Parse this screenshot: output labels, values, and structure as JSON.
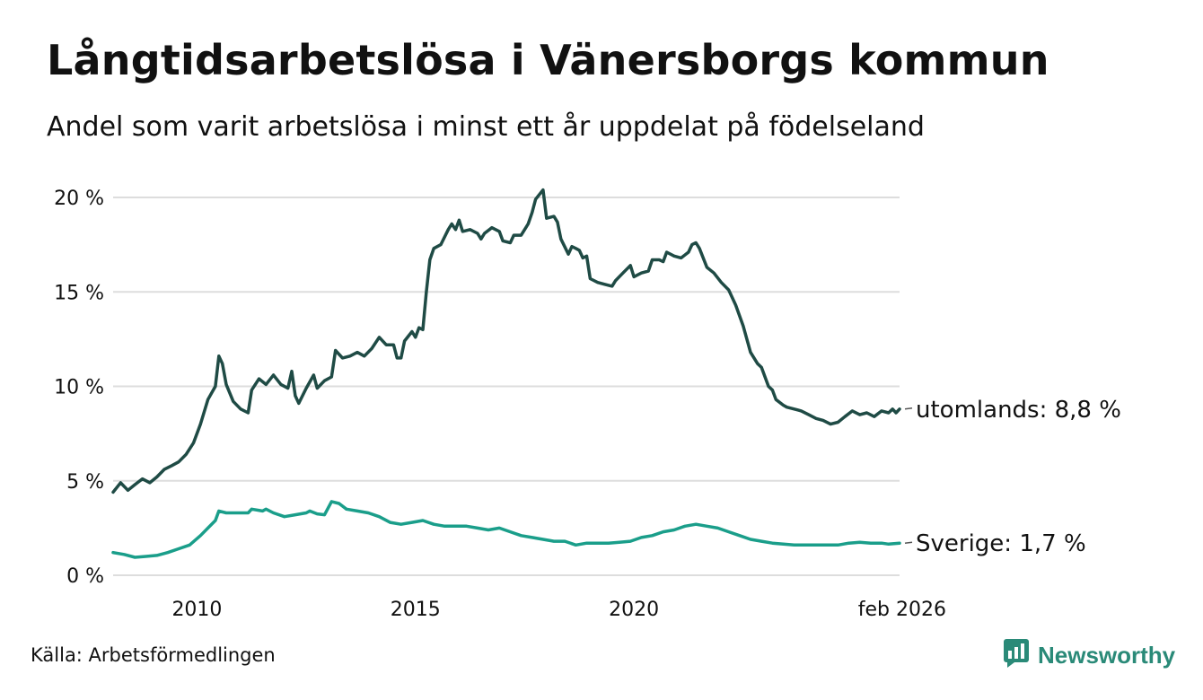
{
  "header": {
    "title": "Långtidsarbetslösa i Vänersborgs kommun",
    "subtitle": "Andel som varit arbetslösa i minst ett år uppdelat på födelseland"
  },
  "footer": {
    "source": "Källa: Arbetsförmedlingen",
    "brand": "Newsworthy",
    "brand_icon": "newsworthy-logo-icon"
  },
  "colors": {
    "utomlands": "#1f4b45",
    "sverige": "#1a9e8a",
    "grid": "#dddddd",
    "brand": "#2a8a78"
  },
  "chart_data": {
    "type": "line",
    "title": "Långtidsarbetslösa i Vänersborgs kommun",
    "xlabel": "",
    "ylabel": "",
    "xlim": [
      2008.08,
      2026.08
    ],
    "ylim": [
      0,
      20
    ],
    "y_ticks": [
      0,
      5,
      10,
      15,
      20
    ],
    "y_tick_labels": [
      "0 %",
      "5 %",
      "10 %",
      "15 %",
      "20 %"
    ],
    "x_ticks": [
      2010,
      2015,
      2020,
      2026.08
    ],
    "x_tick_labels": [
      "2010",
      "2015",
      "2020",
      "feb 2026"
    ],
    "grid": true,
    "series": [
      {
        "name": "utomlands",
        "end_label": "utomlands: 8,8 %",
        "points": [
          [
            2008.08,
            4.4
          ],
          [
            2008.25,
            4.9
          ],
          [
            2008.42,
            4.5
          ],
          [
            2008.58,
            4.8
          ],
          [
            2008.75,
            5.1
          ],
          [
            2008.92,
            4.9
          ],
          [
            2009.08,
            5.2
          ],
          [
            2009.25,
            5.6
          ],
          [
            2009.42,
            5.8
          ],
          [
            2009.58,
            6.0
          ],
          [
            2009.75,
            6.4
          ],
          [
            2009.92,
            7.0
          ],
          [
            2010.08,
            8.0
          ],
          [
            2010.25,
            9.3
          ],
          [
            2010.42,
            10.0
          ],
          [
            2010.5,
            11.6
          ],
          [
            2010.58,
            11.2
          ],
          [
            2010.67,
            10.1
          ],
          [
            2010.83,
            9.2
          ],
          [
            2011.0,
            8.8
          ],
          [
            2011.17,
            8.6
          ],
          [
            2011.25,
            9.8
          ],
          [
            2011.42,
            10.4
          ],
          [
            2011.58,
            10.1
          ],
          [
            2011.75,
            10.6
          ],
          [
            2011.92,
            10.1
          ],
          [
            2012.08,
            9.9
          ],
          [
            2012.17,
            10.8
          ],
          [
            2012.25,
            9.5
          ],
          [
            2012.33,
            9.1
          ],
          [
            2012.5,
            9.9
          ],
          [
            2012.67,
            10.6
          ],
          [
            2012.75,
            9.9
          ],
          [
            2012.92,
            10.3
          ],
          [
            2013.08,
            10.5
          ],
          [
            2013.17,
            11.9
          ],
          [
            2013.33,
            11.5
          ],
          [
            2013.5,
            11.6
          ],
          [
            2013.67,
            11.8
          ],
          [
            2013.83,
            11.6
          ],
          [
            2014.0,
            12.0
          ],
          [
            2014.17,
            12.6
          ],
          [
            2014.33,
            12.2
          ],
          [
            2014.5,
            12.2
          ],
          [
            2014.58,
            11.5
          ],
          [
            2014.67,
            11.5
          ],
          [
            2014.75,
            12.4
          ],
          [
            2014.92,
            12.9
          ],
          [
            2015.0,
            12.6
          ],
          [
            2015.08,
            13.1
          ],
          [
            2015.17,
            13.0
          ],
          [
            2015.25,
            15.0
          ],
          [
            2015.33,
            16.7
          ],
          [
            2015.42,
            17.3
          ],
          [
            2015.58,
            17.5
          ],
          [
            2015.75,
            18.3
          ],
          [
            2015.83,
            18.6
          ],
          [
            2015.92,
            18.3
          ],
          [
            2016.0,
            18.8
          ],
          [
            2016.08,
            18.2
          ],
          [
            2016.25,
            18.3
          ],
          [
            2016.42,
            18.1
          ],
          [
            2016.5,
            17.8
          ],
          [
            2016.58,
            18.1
          ],
          [
            2016.75,
            18.4
          ],
          [
            2016.92,
            18.2
          ],
          [
            2017.0,
            17.7
          ],
          [
            2017.17,
            17.6
          ],
          [
            2017.25,
            18.0
          ],
          [
            2017.42,
            18.0
          ],
          [
            2017.58,
            18.6
          ],
          [
            2017.67,
            19.2
          ],
          [
            2017.75,
            19.9
          ],
          [
            2017.92,
            20.4
          ],
          [
            2018.0,
            18.9
          ],
          [
            2018.17,
            19.0
          ],
          [
            2018.25,
            18.7
          ],
          [
            2018.33,
            17.8
          ],
          [
            2018.5,
            17.0
          ],
          [
            2018.58,
            17.4
          ],
          [
            2018.67,
            17.3
          ],
          [
            2018.75,
            17.2
          ],
          [
            2018.83,
            16.8
          ],
          [
            2018.92,
            16.9
          ],
          [
            2019.0,
            15.7
          ],
          [
            2019.17,
            15.5
          ],
          [
            2019.33,
            15.4
          ],
          [
            2019.5,
            15.3
          ],
          [
            2019.58,
            15.6
          ],
          [
            2019.75,
            16.0
          ],
          [
            2019.92,
            16.4
          ],
          [
            2020.0,
            15.8
          ],
          [
            2020.17,
            16.0
          ],
          [
            2020.33,
            16.1
          ],
          [
            2020.42,
            16.7
          ],
          [
            2020.58,
            16.7
          ],
          [
            2020.67,
            16.6
          ],
          [
            2020.75,
            17.1
          ],
          [
            2020.92,
            16.9
          ],
          [
            2021.08,
            16.8
          ],
          [
            2021.25,
            17.1
          ],
          [
            2021.33,
            17.5
          ],
          [
            2021.42,
            17.6
          ],
          [
            2021.5,
            17.3
          ],
          [
            2021.67,
            16.3
          ],
          [
            2021.83,
            16.0
          ],
          [
            2022.0,
            15.5
          ],
          [
            2022.17,
            15.1
          ],
          [
            2022.33,
            14.3
          ],
          [
            2022.5,
            13.2
          ],
          [
            2022.67,
            11.8
          ],
          [
            2022.83,
            11.2
          ],
          [
            2022.92,
            11.0
          ],
          [
            2023.08,
            10.0
          ],
          [
            2023.17,
            9.8
          ],
          [
            2023.25,
            9.3
          ],
          [
            2023.42,
            9.0
          ],
          [
            2023.5,
            8.9
          ],
          [
            2023.67,
            8.8
          ],
          [
            2023.83,
            8.7
          ],
          [
            2024.0,
            8.5
          ],
          [
            2024.17,
            8.3
          ],
          [
            2024.33,
            8.2
          ],
          [
            2024.5,
            8.0
          ],
          [
            2024.67,
            8.1
          ],
          [
            2024.83,
            8.4
          ],
          [
            2025.0,
            8.7
          ],
          [
            2025.17,
            8.5
          ],
          [
            2025.33,
            8.6
          ],
          [
            2025.5,
            8.4
          ],
          [
            2025.67,
            8.7
          ],
          [
            2025.83,
            8.6
          ],
          [
            2025.92,
            8.8
          ],
          [
            2026.0,
            8.6
          ],
          [
            2026.08,
            8.8
          ]
        ]
      },
      {
        "name": "Sverige",
        "end_label": "Sverige: 1,7 %",
        "points": [
          [
            2008.08,
            1.2
          ],
          [
            2008.33,
            1.1
          ],
          [
            2008.58,
            0.95
          ],
          [
            2008.83,
            1.0
          ],
          [
            2009.08,
            1.05
          ],
          [
            2009.33,
            1.2
          ],
          [
            2009.58,
            1.4
          ],
          [
            2009.83,
            1.6
          ],
          [
            2010.08,
            2.1
          ],
          [
            2010.25,
            2.5
          ],
          [
            2010.42,
            2.9
          ],
          [
            2010.5,
            3.4
          ],
          [
            2010.67,
            3.3
          ],
          [
            2010.92,
            3.3
          ],
          [
            2011.17,
            3.3
          ],
          [
            2011.25,
            3.5
          ],
          [
            2011.5,
            3.4
          ],
          [
            2011.58,
            3.5
          ],
          [
            2011.75,
            3.3
          ],
          [
            2012.0,
            3.1
          ],
          [
            2012.25,
            3.2
          ],
          [
            2012.5,
            3.3
          ],
          [
            2012.58,
            3.4
          ],
          [
            2012.75,
            3.25
          ],
          [
            2012.92,
            3.2
          ],
          [
            2013.08,
            3.9
          ],
          [
            2013.25,
            3.8
          ],
          [
            2013.42,
            3.5
          ],
          [
            2013.67,
            3.4
          ],
          [
            2013.92,
            3.3
          ],
          [
            2014.17,
            3.1
          ],
          [
            2014.42,
            2.8
          ],
          [
            2014.67,
            2.7
          ],
          [
            2014.92,
            2.8
          ],
          [
            2015.17,
            2.9
          ],
          [
            2015.42,
            2.7
          ],
          [
            2015.67,
            2.6
          ],
          [
            2015.92,
            2.6
          ],
          [
            2016.17,
            2.6
          ],
          [
            2016.42,
            2.5
          ],
          [
            2016.67,
            2.4
          ],
          [
            2016.92,
            2.5
          ],
          [
            2017.17,
            2.3
          ],
          [
            2017.42,
            2.1
          ],
          [
            2017.67,
            2.0
          ],
          [
            2017.92,
            1.9
          ],
          [
            2018.17,
            1.8
          ],
          [
            2018.42,
            1.8
          ],
          [
            2018.67,
            1.6
          ],
          [
            2018.92,
            1.7
          ],
          [
            2019.17,
            1.7
          ],
          [
            2019.42,
            1.7
          ],
          [
            2019.67,
            1.75
          ],
          [
            2019.92,
            1.8
          ],
          [
            2020.17,
            2.0
          ],
          [
            2020.42,
            2.1
          ],
          [
            2020.67,
            2.3
          ],
          [
            2020.92,
            2.4
          ],
          [
            2021.17,
            2.6
          ],
          [
            2021.42,
            2.7
          ],
          [
            2021.67,
            2.6
          ],
          [
            2021.92,
            2.5
          ],
          [
            2022.17,
            2.3
          ],
          [
            2022.42,
            2.1
          ],
          [
            2022.67,
            1.9
          ],
          [
            2022.92,
            1.8
          ],
          [
            2023.17,
            1.7
          ],
          [
            2023.42,
            1.65
          ],
          [
            2023.67,
            1.6
          ],
          [
            2023.92,
            1.6
          ],
          [
            2024.17,
            1.6
          ],
          [
            2024.42,
            1.6
          ],
          [
            2024.67,
            1.6
          ],
          [
            2024.92,
            1.7
          ],
          [
            2025.17,
            1.75
          ],
          [
            2025.42,
            1.7
          ],
          [
            2025.67,
            1.7
          ],
          [
            2025.83,
            1.65
          ],
          [
            2026.08,
            1.7
          ]
        ]
      }
    ]
  }
}
